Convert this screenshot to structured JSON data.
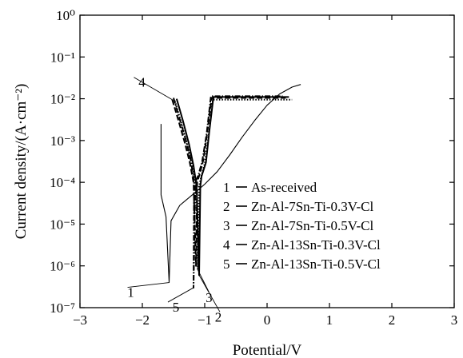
{
  "chart_data": {
    "type": "line",
    "title": "",
    "xlabel": "Potential/V",
    "ylabel": "Current density/(A·cm⁻²)",
    "xlim": [
      -3,
      3
    ],
    "ylim_log10": [
      -7,
      0
    ],
    "y_scale": "log",
    "grid": false,
    "legend_position": "lower-right",
    "x_ticks": [
      -3,
      -2,
      -1,
      0,
      1,
      2,
      3
    ],
    "x_tick_labels": [
      "−3",
      "−2",
      "−1",
      "0",
      "1",
      "2",
      "3"
    ],
    "y_ticks": [
      -7,
      -6,
      -5,
      -4,
      -3,
      -2,
      -1,
      0
    ],
    "y_tick_labels": [
      "10⁻⁷",
      "10⁻⁶",
      "10⁻⁵",
      "10⁻⁴",
      "10⁻³",
      "10⁻²",
      "10⁻¹",
      "10⁰"
    ],
    "series": [
      {
        "id": "1",
        "name": "As-received",
        "color": "#000000",
        "dash": "solid",
        "points": [
          [
            -1.7,
            0.0025
          ],
          [
            -1.7,
            5e-05
          ],
          [
            -1.62,
            1.5e-05
          ],
          [
            -1.57,
            4e-07
          ],
          [
            -1.54,
            1.2e-05
          ],
          [
            -1.4,
            2.8e-05
          ],
          [
            -1.2,
            5e-05
          ],
          [
            -1.0,
            9e-05
          ],
          [
            -0.8,
            0.00018
          ],
          [
            -0.6,
            0.00045
          ],
          [
            -0.4,
            0.0012
          ],
          [
            -0.2,
            0.003
          ],
          [
            0.0,
            0.007
          ],
          [
            0.2,
            0.013
          ],
          [
            0.4,
            0.019
          ],
          [
            0.54,
            0.022
          ]
        ]
      },
      {
        "id": "2",
        "name": "Zn-Al-7Sn-Ti-0.3V-Cl",
        "color": "#000000",
        "dash": "solid",
        "points": [
          [
            -1.45,
            0.01
          ],
          [
            -1.35,
            0.003
          ],
          [
            -1.25,
            0.0008
          ],
          [
            -1.18,
            0.00025
          ],
          [
            -1.13,
            8e-05
          ],
          [
            -1.09,
            6e-07
          ],
          [
            -1.07,
            8e-05
          ],
          [
            -1.05,
            0.00014
          ],
          [
            -0.98,
            0.0003
          ],
          [
            -0.93,
            0.0015
          ],
          [
            -0.86,
            0.011
          ],
          [
            -0.5,
            0.011
          ],
          [
            0.35,
            0.011
          ]
        ]
      },
      {
        "id": "3",
        "name": "Zn-Al-7Sn-Ti-0.5V-Cl",
        "color": "#000000",
        "dash": "dotted",
        "points": [
          [
            -1.48,
            0.009
          ],
          [
            -1.38,
            0.0028
          ],
          [
            -1.28,
            0.0008
          ],
          [
            -1.2,
            0.00025
          ],
          [
            -1.14,
            8e-05
          ],
          [
            -1.11,
            8e-07
          ],
          [
            -1.09,
            8e-05
          ],
          [
            -1.06,
            0.00013
          ],
          [
            -1.0,
            0.00028
          ],
          [
            -0.94,
            0.0012
          ],
          [
            -0.87,
            0.0095
          ],
          [
            -0.5,
            0.0095
          ],
          [
            0.4,
            0.0095
          ]
        ]
      },
      {
        "id": "4",
        "name": "Zn-Al-13Sn-Ti-0.3V-Cl",
        "color": "#000000",
        "dash": "dashed",
        "points": [
          [
            -1.52,
            0.0095
          ],
          [
            -1.42,
            0.003
          ],
          [
            -1.32,
            0.0009
          ],
          [
            -1.24,
            0.0003
          ],
          [
            -1.18,
            0.0001
          ],
          [
            -1.14,
            1e-06
          ],
          [
            -1.12,
            0.0001
          ],
          [
            -1.08,
            0.00016
          ],
          [
            -1.02,
            0.00035
          ],
          [
            -0.96,
            0.0015
          ],
          [
            -0.89,
            0.0105
          ],
          [
            -0.5,
            0.0105
          ],
          [
            0.3,
            0.0105
          ]
        ]
      },
      {
        "id": "5",
        "name": "Zn-Al-13Sn-Ti-0.5V-Cl",
        "color": "#000000",
        "dash": "dashdot",
        "points": [
          [
            -1.5,
            0.0105
          ],
          [
            -1.4,
            0.0032
          ],
          [
            -1.3,
            0.001
          ],
          [
            -1.22,
            0.00032
          ],
          [
            -1.17,
            0.0001
          ],
          [
            -1.18,
            3e-07
          ],
          [
            -1.15,
            0.0001
          ],
          [
            -1.1,
            0.00015
          ],
          [
            -1.04,
            0.00032
          ],
          [
            -0.97,
            0.0014
          ],
          [
            -0.9,
            0.0115
          ],
          [
            -0.5,
            0.0115
          ],
          [
            0.25,
            0.0115
          ]
        ]
      }
    ],
    "callouts": [
      {
        "label": "1",
        "anchor": [
          -1.57,
          4e-07
        ]
      },
      {
        "label": "2",
        "anchor": [
          -1.09,
          6e-07
        ]
      },
      {
        "label": "3",
        "anchor": [
          -1.11,
          8e-07
        ]
      },
      {
        "label": "4",
        "anchor": [
          -1.52,
          0.0095
        ]
      },
      {
        "label": "5",
        "anchor": [
          -1.18,
          3e-07
        ]
      }
    ]
  }
}
